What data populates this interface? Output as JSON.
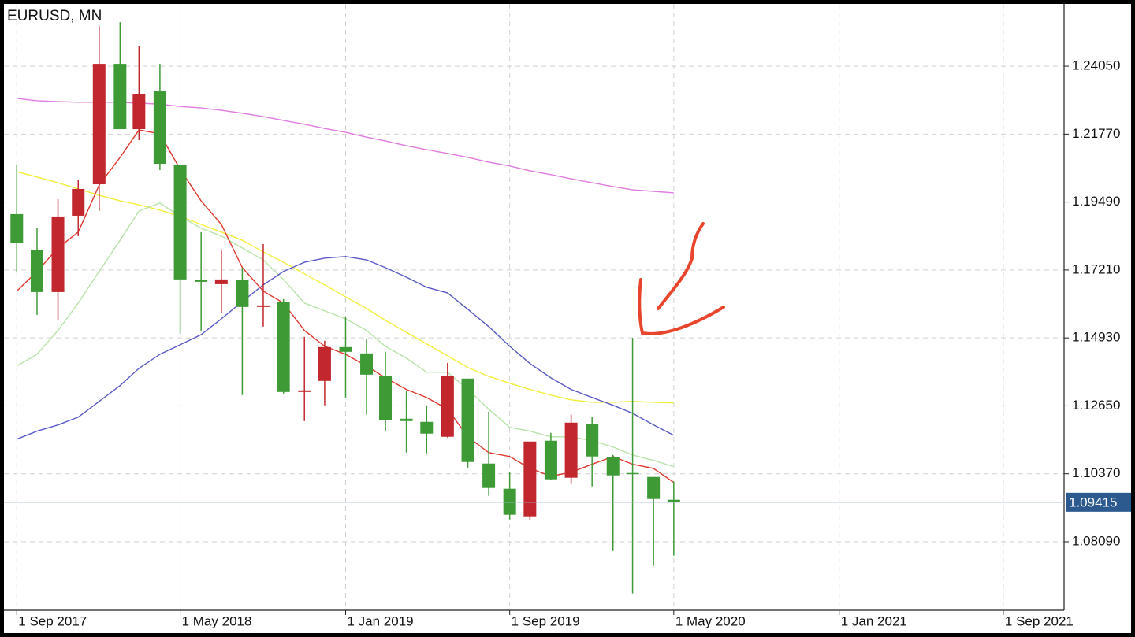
{
  "chart_data": {
    "type": "candlestick",
    "title": "EURUSD, MN",
    "x": [
      "2017-09-01",
      "2017-10-01",
      "2017-11-01",
      "2017-12-01",
      "2018-01-01",
      "2018-02-01",
      "2018-03-01",
      "2018-04-01",
      "2018-05-01",
      "2018-06-01",
      "2018-07-01",
      "2018-08-01",
      "2018-09-01",
      "2018-10-01",
      "2018-11-01",
      "2018-12-01",
      "2019-01-01",
      "2019-02-01",
      "2019-03-01",
      "2019-04-01",
      "2019-05-01",
      "2019-06-01",
      "2019-07-01",
      "2019-08-01",
      "2019-09-01",
      "2019-10-01",
      "2019-11-01",
      "2019-12-01",
      "2020-01-01",
      "2020-02-01",
      "2020-03-01",
      "2020-04-01",
      "2020-05-01"
    ],
    "open": [
      1.19085,
      1.1787,
      1.1647,
      1.19032,
      1.20088,
      1.24129,
      1.21937,
      1.23205,
      1.20749,
      1.16866,
      1.16734,
      1.16866,
      1.15969,
      1.16127,
      1.13116,
      1.13486,
      1.14622,
      1.1441,
      1.13644,
      1.12218,
      1.12113,
      1.11611,
      1.13565,
      1.10713,
      1.09868,
      1.08943,
      1.11479,
      1.10238,
      1.12033,
      1.10924,
      1.10396,
      1.10264,
      1.09498
    ],
    "high": [
      1.20722,
      1.1861,
      1.19587,
      1.20247,
      1.25397,
      1.25529,
      1.24737,
      1.24129,
      1.20749,
      1.18477,
      1.1787,
      1.17289,
      1.18081,
      1.16233,
      1.14965,
      1.14833,
      1.15625,
      1.14886,
      1.14463,
      1.13143,
      1.12667,
      1.14093,
      1.13565,
      1.12456,
      1.10422,
      1.11452,
      1.11743,
      1.1235,
      1.12271,
      1.11003,
      1.1493,
      1.10264,
      1.10106
    ],
    "low": [
      1.17157,
      1.15704,
      1.1552,
      1.18345,
      1.19191,
      1.21937,
      1.21567,
      1.20564,
      1.15071,
      1.15176,
      1.15757,
      1.13011,
      1.15308,
      1.13063,
      1.12139,
      1.12667,
      1.12931,
      1.1235,
      1.11796,
      1.11083,
      1.11056,
      1.11585,
      1.10581,
      1.0963,
      1.08838,
      1.08812,
      1.10158,
      1.10026,
      1.09947,
      1.07781,
      1.06355,
      1.0728,
      1.07623
    ],
    "close": [
      1.18108,
      1.1647,
      1.19006,
      1.1993,
      1.24129,
      1.21937,
      1.23126,
      1.20775,
      1.16893,
      1.16814,
      1.16893,
      1.15969,
      1.16021,
      1.13116,
      1.13169,
      1.14622,
      1.14463,
      1.13697,
      1.12165,
      1.12139,
      1.11717,
      1.13644,
      1.10766,
      1.09894,
      1.08996,
      1.11452,
      1.10185,
      1.12086,
      1.10951,
      1.10317,
      1.1037,
      1.09524,
      1.09415
    ],
    "up_color": "#c1272d",
    "down_color": "#3d9a35",
    "overlays": [
      {
        "color": "#e07be0",
        "values": [
          1.2297,
          1.2289,
          1.2286,
          1.2284,
          1.2284,
          1.2284,
          1.2281,
          1.2278,
          1.227,
          1.2265,
          1.2257,
          1.2247,
          1.2236,
          1.2223,
          1.221,
          1.2196,
          1.2183,
          1.2167,
          1.2154,
          1.2138,
          1.2125,
          1.2112,
          1.2099,
          1.2083,
          1.207,
          1.2054,
          1.2041,
          1.2027,
          1.2014,
          1.2001,
          1.199,
          1.1985,
          1.198
        ]
      },
      {
        "color": "#f2ee3a",
        "values": [
          1.2051,
          1.2033,
          1.2014,
          1.1993,
          1.1972,
          1.1953,
          1.194,
          1.1922,
          1.1901,
          1.1874,
          1.1848,
          1.1821,
          1.1782,
          1.1747,
          1.1708,
          1.1671,
          1.1631,
          1.1592,
          1.1552,
          1.1512,
          1.1473,
          1.1433,
          1.1394,
          1.1364,
          1.1341,
          1.132,
          1.1301,
          1.1285,
          1.1277,
          1.1277,
          1.128,
          1.1277,
          1.1275
        ]
      },
      {
        "color": "#b7e3a8",
        "values": [
          1.1399,
          1.1438,
          1.1518,
          1.161,
          1.1716,
          1.1821,
          1.1919,
          1.1946,
          1.1901,
          1.1861,
          1.1835,
          1.1795,
          1.1755,
          1.1689,
          1.161,
          1.1584,
          1.1557,
          1.1518,
          1.1465,
          1.1425,
          1.1378,
          1.1378,
          1.132,
          1.1254,
          1.1193,
          1.118,
          1.1161,
          1.1161,
          1.1148,
          1.1127,
          1.11,
          1.1082,
          1.1061
        ]
      },
      {
        "color": "#5a5ac8",
        "values": [
          1.1153,
          1.118,
          1.1201,
          1.1227,
          1.128,
          1.1333,
          1.1391,
          1.1438,
          1.147,
          1.1504,
          1.1557,
          1.1615,
          1.1671,
          1.1716,
          1.1747,
          1.1761,
          1.1766,
          1.1755,
          1.1729,
          1.1697,
          1.1663,
          1.1644,
          1.1589,
          1.1531,
          1.1465,
          1.1407,
          1.1359,
          1.132,
          1.1293,
          1.1267,
          1.124,
          1.1201,
          1.1166
        ]
      },
      {
        "color": "#e0382e",
        "values": [
          1.165,
          1.1716,
          1.1795,
          1.1848,
          1.2006,
          1.2099,
          1.2191,
          1.2178,
          1.2059,
          1.1953,
          1.1874,
          1.1729,
          1.165,
          1.161,
          1.1518,
          1.1465,
          1.1438,
          1.1399,
          1.1359,
          1.132,
          1.1293,
          1.1254,
          1.1161,
          1.1108,
          1.1095,
          1.1055,
          1.1029,
          1.1042,
          1.1069,
          1.1095,
          1.1069,
          1.1055,
          1.1008
        ]
      }
    ],
    "last_price": 1.09415,
    "last_price_color": "#2d5a8e",
    "xlim": [
      "2017-08-13",
      "2021-11-30"
    ],
    "xticks": [
      {
        "value": "2017-09-01",
        "label": "1 Sep 2017"
      },
      {
        "value": "2018-05-01",
        "label": "1 May 2018"
      },
      {
        "value": "2019-01-01",
        "label": "1 Jan 2019"
      },
      {
        "value": "2019-09-01",
        "label": "1 Sep 2019"
      },
      {
        "value": "2020-05-01",
        "label": "1 May 2020"
      },
      {
        "value": "2021-01-01",
        "label": "1 Jan 2021"
      },
      {
        "value": "2021-09-01",
        "label": "1 Sep 2021"
      }
    ],
    "ylim": [
      1.0579,
      1.2614
    ],
    "yticks": [
      {
        "value": 1.2405,
        "label": "1.24050"
      },
      {
        "value": 1.2177,
        "label": "1.21770"
      },
      {
        "value": 1.1949,
        "label": "1.19490"
      },
      {
        "value": 1.1721,
        "label": "1.17210"
      },
      {
        "value": 1.1493,
        "label": "1.14930"
      },
      {
        "value": 1.1265,
        "label": "1.12650"
      },
      {
        "value": 1.1037,
        "label": "1.10370"
      },
      {
        "value": 1.0809,
        "label": "1.08090"
      }
    ],
    "grid": true
  }
}
